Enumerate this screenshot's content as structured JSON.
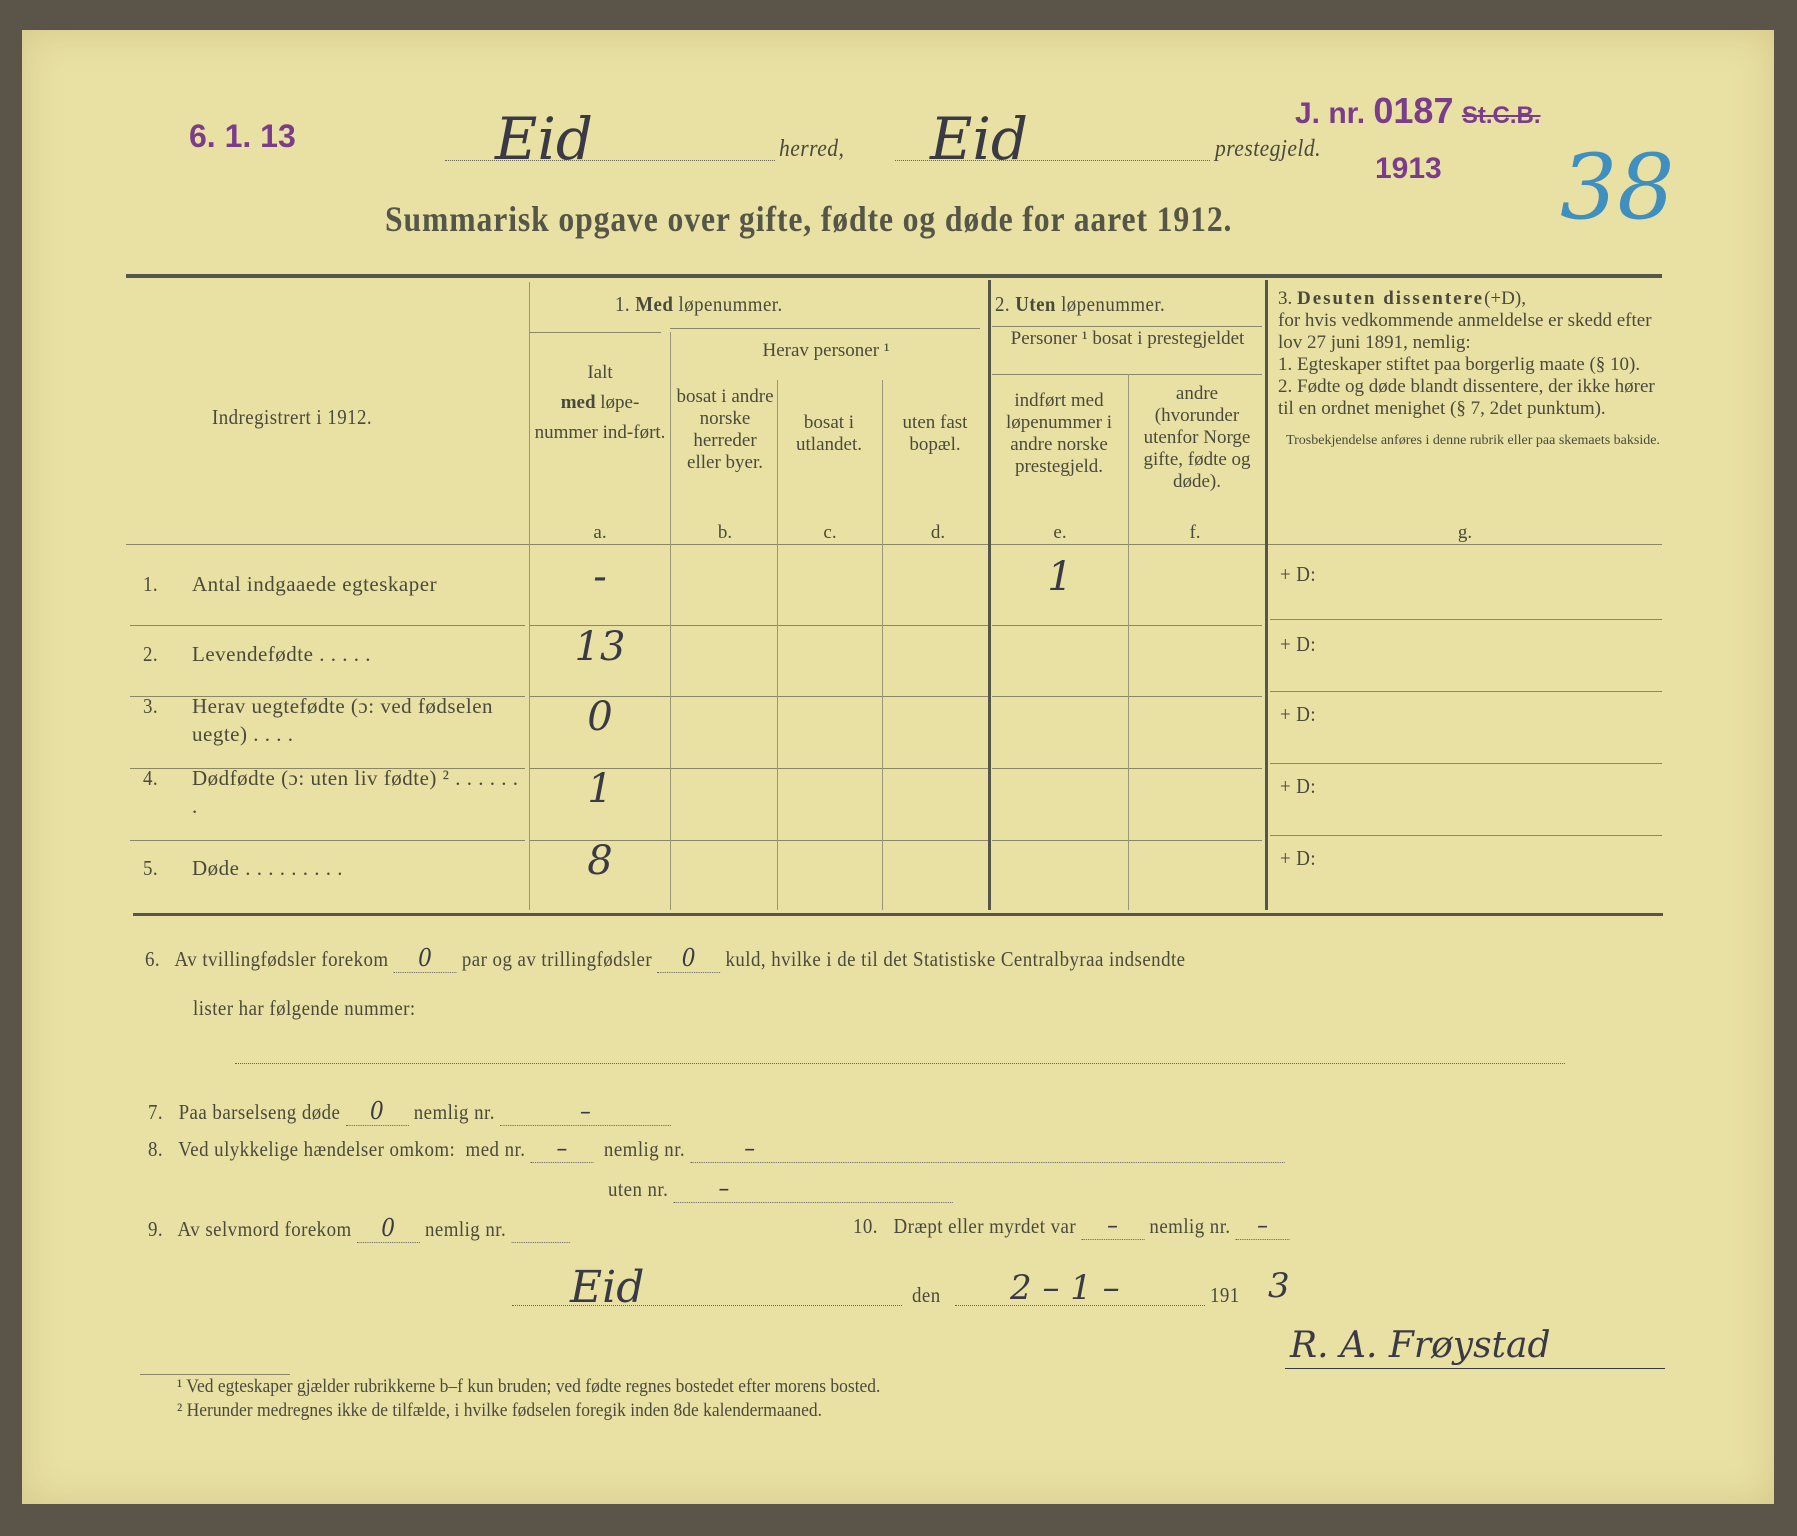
{
  "stamp_date": "6. 1. 13",
  "stamp_journal": {
    "prefix": "J. nr.",
    "number": "0187",
    "office": "St.C.B.",
    "year": "1913"
  },
  "header": {
    "herred_value": "Eid",
    "herred_label": "herred,",
    "prestegjeld_value": "Eid",
    "prestegjeld_label": "prestegjeld."
  },
  "title": "Summarisk opgave over gifte, fødte og døde for aaret 1912.",
  "table": {
    "row_header": "Indregistrert i 1912.",
    "group1": {
      "num": "1.",
      "bold": "Med",
      "rest": "løpenummer."
    },
    "col_a": {
      "line1": "Ialt",
      "bold": "med",
      "line2": "løpe-nummer ind-ført.",
      "letter": "a."
    },
    "herav": "Herav personer ¹",
    "col_b": {
      "text": "bosat i andre norske herreder eller byer.",
      "letter": "b."
    },
    "col_c": {
      "text": "bosat i utlandet.",
      "letter": "c."
    },
    "col_d": {
      "text": "uten fast bopæl.",
      "letter": "d."
    },
    "group2": {
      "num": "2.",
      "bold": "Uten",
      "rest": "løpenummer."
    },
    "personer": "Personer ¹ bosat i prestegjeldet",
    "col_e": {
      "text": "indført med løpenummer i andre norske prestegjeld.",
      "letter": "e."
    },
    "col_f": {
      "text": "andre (hvorunder utenfor Norge gifte, fødte og døde).",
      "letter": "f."
    },
    "group3": {
      "title_num": "3.",
      "title_bold": "Desuten dissentere",
      "title_rest": "(+D),",
      "body": "for hvis vedkommende anmeldelse er skedd efter lov 27 juni 1891, nemlig:",
      "item1": "1. Egteskaper stiftet paa borgerlig maate (§ 10).",
      "item2": "2. Fødte og døde blandt dissentere, der ikke hører til en ordnet menighet (§ 7, 2det punktum).",
      "note": "Trosbekjendelse anføres i denne rubrik eller paa skemaets bakside.",
      "letter": "g.",
      "handwritten": "38"
    },
    "rows": [
      {
        "num": "1.",
        "label": "Antal indgaaede egteskaper",
        "a": "-",
        "e": "1",
        "g": "+ D:"
      },
      {
        "num": "2.",
        "label": "Levendefødte . . . . .",
        "a": "13",
        "e": "",
        "g": "+ D:"
      },
      {
        "num": "3.",
        "label": "Herav uegtefødte (ɔ: ved fødselen uegte) . . . .",
        "a": "0",
        "e": "",
        "g": "+ D:"
      },
      {
        "num": "4.",
        "label": "Dødfødte (ɔ: uten liv fødte) ² . . . . . . .",
        "a": "1",
        "e": "",
        "g": "+ D:"
      },
      {
        "num": "5.",
        "label": "Døde . . . . . . . . .",
        "a": "8",
        "e": "",
        "g": "+ D:"
      }
    ]
  },
  "items": {
    "i6": {
      "num": "6.",
      "t1": "Av tvillingfødsler forekom",
      "v1": "0",
      "t2": "par og av trillingfødsler",
      "v2": "0",
      "t3": "kuld, hvilke i de til det Statistiske Centralbyraa indsendte",
      "t4": "lister har følgende nummer:"
    },
    "i7": {
      "num": "7.",
      "t1": "Paa barselseng døde",
      "v1": "0",
      "t2": "nemlig nr.",
      "v2": "–"
    },
    "i8": {
      "num": "8.",
      "t1": "Ved ulykkelige hændelser omkom:",
      "t2": "med nr.",
      "v1": "–",
      "t3": "nemlig nr.",
      "v2": "–",
      "t4": "uten nr.",
      "v3": "–"
    },
    "i9": {
      "num": "9.",
      "t1": "Av selvmord forekom",
      "v1": "0",
      "t2": "nemlig nr."
    },
    "i10": {
      "num": "10.",
      "t1": "Dræpt eller myrdet var",
      "v1": "–",
      "t2": "nemlig nr.",
      "v2": "–"
    }
  },
  "place": "Eid",
  "den": "den",
  "date": "2 – 1 –",
  "year_prefix": "191",
  "year_suffix": "3",
  "signature": "R. A. Frøystad",
  "footnotes": [
    "¹ Ved egteskaper gjælder rubrikkerne b–f kun bruden; ved fødte regnes bostedet efter morens bosted.",
    "² Herunder medregnes ikke de tilfælde, i hvilke fødselen foregik inden 8de kalendermaaned."
  ],
  "colors": {
    "paper": "#e9e0a3",
    "stamp": "#7a3d8a",
    "blue_pencil": "#3f8fbf",
    "ink": "#3a3a44"
  }
}
